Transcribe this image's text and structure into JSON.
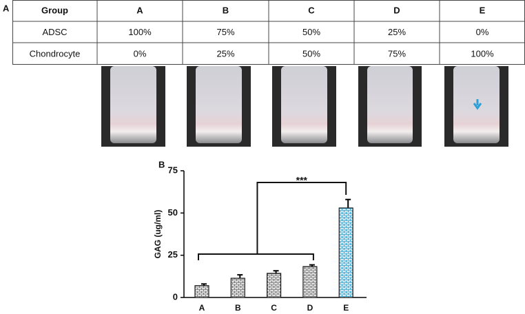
{
  "panel_labels": [
    "A",
    "B"
  ],
  "table": {
    "header": [
      "Group",
      "A",
      "B",
      "C",
      "D",
      "E"
    ],
    "rows": [
      [
        "ADSC",
        "100%",
        "75%",
        "50%",
        "25%",
        "0%"
      ],
      [
        "Chondrocyte",
        "0%",
        "25%",
        "50%",
        "75%",
        "100%"
      ]
    ]
  },
  "chart_data": {
    "type": "bar",
    "ylabel": "GAG (ug/ml)",
    "categories": [
      "A",
      "B",
      "C",
      "D",
      "E"
    ],
    "values": [
      7,
      11.4,
      14.3,
      18.3,
      53
    ],
    "errors": [
      1,
      2,
      1.5,
      1,
      5
    ],
    "colors": [
      "#777777",
      "#777777",
      "#777777",
      "#777777",
      "#3aa6d0"
    ],
    "ylim": [
      0,
      75
    ],
    "yticks": [
      0,
      25,
      50,
      75
    ],
    "annotation": "***",
    "annotation_color": "#3aa6d0"
  }
}
